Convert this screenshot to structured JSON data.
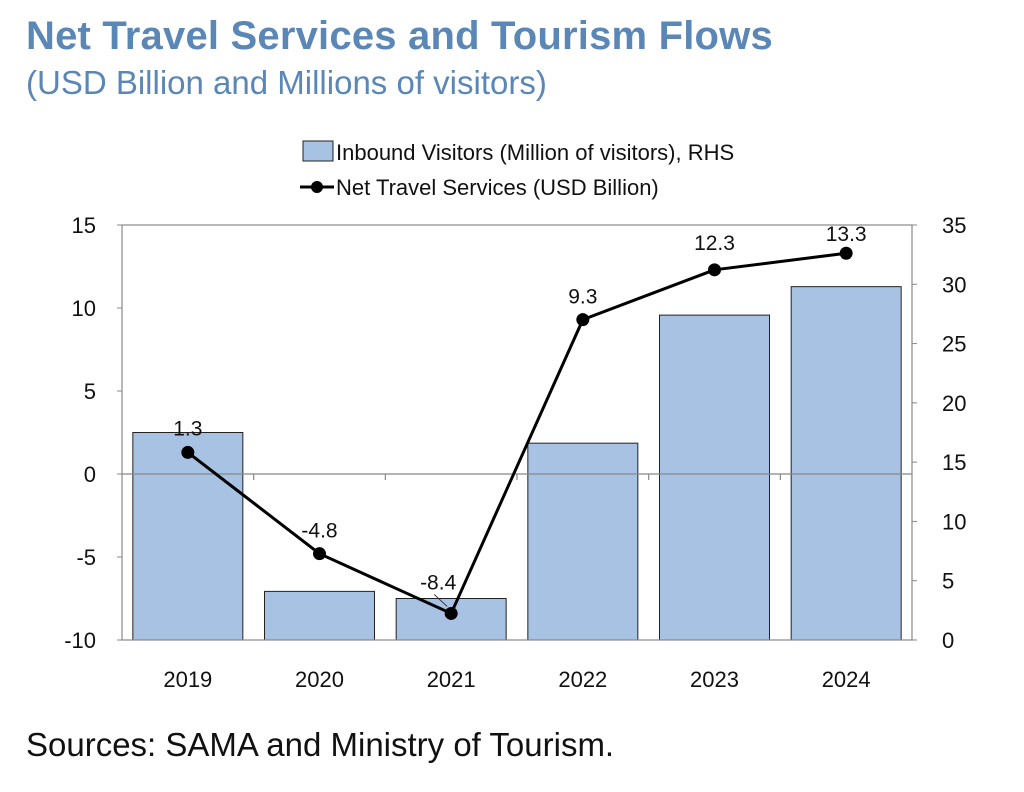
{
  "title": "Net Travel Services and Tourism Flows",
  "subtitle": "(USD Billion and Millions of visitors)",
  "source": "Sources: SAMA and Ministry of Tourism.",
  "colors": {
    "title": "#5b87b7",
    "bar_fill": "#a7c2e3",
    "bar_stroke": "#222222",
    "line": "#000000",
    "axis": "#888888"
  },
  "chart_data": {
    "type": "bar+line",
    "categories": [
      "2019",
      "2020",
      "2021",
      "2022",
      "2023",
      "2024"
    ],
    "series": [
      {
        "name": "Inbound Visitors (Million of visitors), RHS",
        "type": "bar",
        "axis": "right",
        "values": [
          17.5,
          4.1,
          3.5,
          16.6,
          27.4,
          29.8
        ]
      },
      {
        "name": "Net Travel Services (USD Billion)",
        "type": "line",
        "axis": "left",
        "values": [
          1.3,
          -4.8,
          -8.4,
          9.3,
          12.3,
          13.3
        ],
        "labels": [
          "1.3",
          "-4.8",
          "-8.4",
          "9.3",
          "12.3",
          "13.3"
        ]
      }
    ],
    "y_left": {
      "min": -10,
      "max": 15,
      "ticks": [
        "15",
        "10",
        "5",
        "0",
        "-5",
        "-10"
      ],
      "tick_values": [
        15,
        10,
        5,
        0,
        -5,
        -10
      ]
    },
    "y_right": {
      "min": 0,
      "max": 35,
      "ticks": [
        "35",
        "30",
        "25",
        "20",
        "15",
        "10",
        "5",
        "0"
      ],
      "tick_values": [
        35,
        30,
        25,
        20,
        15,
        10,
        5,
        0
      ]
    },
    "legend": {
      "position": "top"
    },
    "grid": false
  }
}
